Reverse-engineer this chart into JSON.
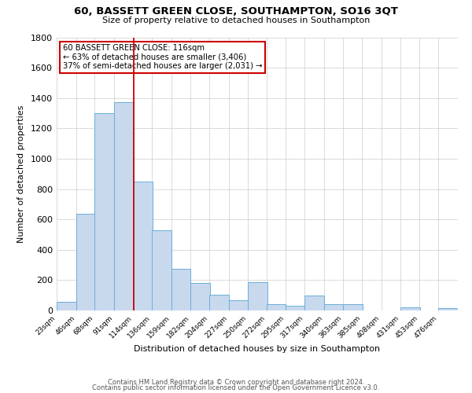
{
  "title": "60, BASSETT GREEN CLOSE, SOUTHAMPTON, SO16 3QT",
  "subtitle": "Size of property relative to detached houses in Southampton",
  "xlabel": "Distribution of detached houses by size in Southampton",
  "ylabel": "Number of detached properties",
  "bar_color": "#c8d9ee",
  "bar_edge_color": "#6aaed6",
  "background_color": "#ffffff",
  "grid_color": "#cccccc",
  "annotation_box_color": "#cc0000",
  "vline_color": "#cc0000",
  "bins": [
    23,
    46,
    68,
    91,
    114,
    136,
    159,
    182,
    204,
    227,
    250,
    272,
    295,
    317,
    340,
    363,
    385,
    408,
    431,
    453,
    476
  ],
  "bin_width": 23,
  "counts": [
    55,
    635,
    1300,
    1375,
    850,
    530,
    275,
    183,
    105,
    68,
    185,
    40,
    30,
    100,
    42,
    42,
    0,
    0,
    20,
    0,
    15
  ],
  "ylim": [
    0,
    1800
  ],
  "yticks": [
    0,
    200,
    400,
    600,
    800,
    1000,
    1200,
    1400,
    1600,
    1800
  ],
  "annotation_title": "60 BASSETT GREEN CLOSE: 116sqm",
  "annotation_line1": "← 63% of detached houses are smaller (3,406)",
  "annotation_line2": "37% of semi-detached houses are larger (2,031) →",
  "footer_line1": "Contains HM Land Registry data © Crown copyright and database right 2024.",
  "footer_line2": "Contains public sector information licensed under the Open Government Licence v3.0.",
  "tick_labels": [
    "23sqm",
    "46sqm",
    "68sqm",
    "91sqm",
    "114sqm",
    "136sqm",
    "159sqm",
    "182sqm",
    "204sqm",
    "227sqm",
    "250sqm",
    "272sqm",
    "295sqm",
    "317sqm",
    "340sqm",
    "363sqm",
    "385sqm",
    "408sqm",
    "431sqm",
    "453sqm",
    "476sqm"
  ]
}
